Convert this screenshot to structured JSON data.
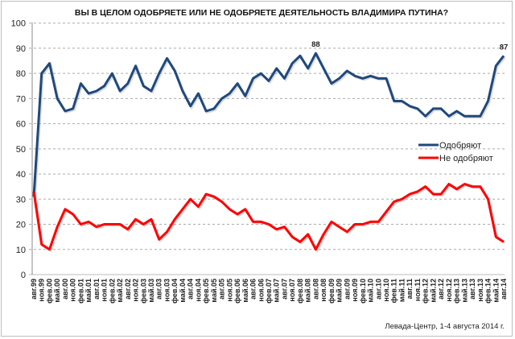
{
  "chart_data": {
    "type": "line",
    "title": "ВЫ В ЦЕЛОМ ОДОБРЯЕТЕ ИЛИ НЕ ОДОБРЯЕТЕ ДЕЯТЕЛЬНОСТЬ ВЛАДИМИРА ПУТИНА?",
    "source": "Левада-Центр, 1-4 августа 2014 г.",
    "ylim": [
      0,
      100
    ],
    "yticks": [
      0,
      10,
      20,
      30,
      40,
      50,
      60,
      70,
      80,
      90,
      100
    ],
    "grid": true,
    "legend_position": "right",
    "categories": [
      "авг.99",
      "ноя.99",
      "фев.00",
      "май.00",
      "авг.00",
      "ноя.00",
      "фев.01",
      "май.01",
      "авг.01",
      "ноя.01",
      "фев.02",
      "май.02",
      "авг.02",
      "ноя.02",
      "фев.03",
      "май.03",
      "авг.03",
      "ноя.03",
      "фев.04",
      "май.04",
      "авг.04",
      "ноя.04",
      "фев.05",
      "май.05",
      "авг.05",
      "ноя.05",
      "фев.06",
      "май.06",
      "авг.06",
      "ноя.06",
      "фев.07",
      "май.07",
      "авг.07",
      "ноя.07",
      "фев.08",
      "май.08",
      "авг.08",
      "ноя.08",
      "фев.09",
      "май.09",
      "авг.09",
      "ноя.09",
      "фев.10",
      "май.10",
      "авг.10",
      "ноя.10",
      "фев.11",
      "май.11",
      "авг.11",
      "ноя.11",
      "фев.12",
      "май.12",
      "авг.12",
      "ноя.12",
      "фев.13",
      "май.13",
      "авг.13",
      "ноя.13",
      "фев.14",
      "май.14",
      "авг.14"
    ],
    "series": [
      {
        "name": "Одобряют",
        "color": "#1f497d",
        "values": [
          31,
          80,
          84,
          70,
          65,
          66,
          76,
          72,
          73,
          75,
          80,
          73,
          76,
          83,
          75,
          73,
          80,
          86,
          81,
          73,
          67,
          72,
          65,
          66,
          70,
          72,
          76,
          71,
          78,
          80,
          77,
          82,
          78,
          84,
          87,
          82,
          88,
          82,
          76,
          78,
          81,
          79,
          78,
          79,
          78,
          78,
          69,
          69,
          67,
          66,
          63,
          66,
          66,
          63,
          65,
          63,
          63,
          63,
          69,
          83,
          87
        ]
      },
      {
        "name": "Не одобряют",
        "color": "#ff0000",
        "values": [
          33,
          12,
          10,
          19,
          26,
          24,
          20,
          21,
          19,
          20,
          20,
          20,
          18,
          22,
          20,
          22,
          14,
          17,
          22,
          26,
          30,
          27,
          32,
          31,
          29,
          26,
          24,
          26,
          21,
          21,
          20,
          18,
          19,
          15,
          13,
          16,
          10,
          16,
          21,
          19,
          17,
          20,
          20,
          21,
          21,
          25,
          29,
          30,
          32,
          33,
          35,
          32,
          32,
          36,
          34,
          36,
          35,
          35,
          30,
          15,
          13
        ]
      }
    ],
    "annotations": [
      {
        "series": 0,
        "category": "авг.08",
        "text": "88"
      },
      {
        "series": 0,
        "category": "авг.14",
        "text": "87"
      }
    ]
  }
}
